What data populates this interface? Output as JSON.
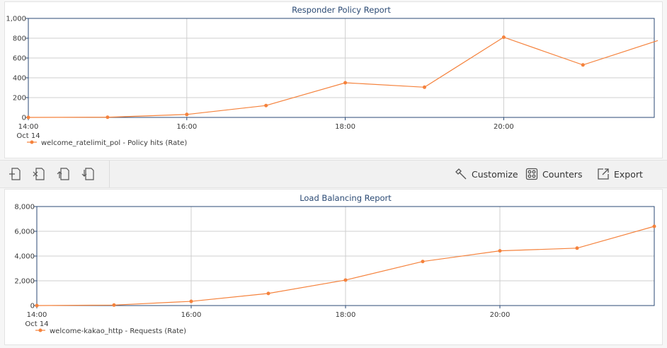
{
  "colors": {
    "series": "#f5823c",
    "axis": "#2b4a74",
    "grid": "#cfcfcf",
    "title": "#2b4a74"
  },
  "charts": [
    {
      "id": "responder",
      "chart_data": {
        "type": "line",
        "title": "Responder Policy Report",
        "x_ticks": [
          "14:00",
          "16:00",
          "18:00",
          "20:00"
        ],
        "x_sub_label": "Oct 14",
        "x": [
          "14:00",
          "15:00",
          "16:00",
          "17:00",
          "18:00",
          "19:00",
          "20:00",
          "21:00",
          "22:00"
        ],
        "xlim": [
          "14:00",
          "21:54"
        ],
        "y_ticks": [
          "0",
          "200",
          "400",
          "600",
          "800",
          "1,000"
        ],
        "ylim": [
          0,
          1000
        ],
        "series": [
          {
            "name": "welcome_ratelimit_pol - Policy hits (Rate)",
            "values": [
              0,
              2,
              30,
              120,
              350,
              305,
              810,
              530,
              790
            ]
          }
        ],
        "legend": "bottom-left",
        "grid": true
      }
    },
    {
      "id": "loadbalancing",
      "chart_data": {
        "type": "line",
        "title": "Load Balancing Report",
        "x_ticks": [
          "14:00",
          "16:00",
          "18:00",
          "20:00"
        ],
        "x_sub_label": "Oct 14",
        "x": [
          "14:00",
          "15:00",
          "16:00",
          "17:00",
          "18:00",
          "19:00",
          "20:00",
          "21:00",
          "22:00"
        ],
        "xlim": [
          "14:00",
          "22:00"
        ],
        "y_ticks": [
          "0",
          "2,000",
          "4,000",
          "6,000",
          "8,000"
        ],
        "ylim": [
          0,
          8000
        ],
        "series": [
          {
            "name": "welcome-kakao_http - Requests (Rate)",
            "values": [
              0,
              40,
              340,
              980,
              2060,
              3560,
              4420,
              4640,
              6400
            ]
          }
        ],
        "legend": "bottom-left",
        "grid": true
      }
    }
  ],
  "toolbar": {
    "customize_label": "Customize",
    "counters_label": "Counters",
    "export_label": "Export"
  }
}
